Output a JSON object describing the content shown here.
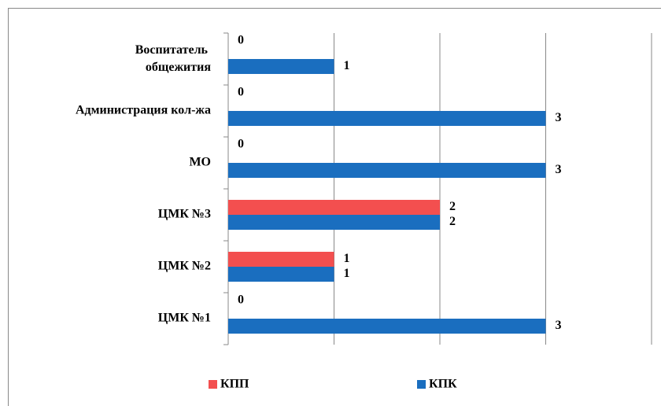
{
  "chart_data": {
    "type": "hbar",
    "categories": [
      "ЦМК  №1",
      "ЦМК  №2",
      "ЦМК  №3",
      "МО",
      "Администрация  кол-жа",
      "Воспитатель\nобщежития"
    ],
    "series": [
      {
        "name": "КПП",
        "color": "#f34f4f",
        "values": [
          0,
          1,
          2,
          0,
          0,
          0
        ]
      },
      {
        "name": "КПК",
        "color": "#1a6ebf",
        "values": [
          3,
          1,
          2,
          3,
          3,
          1
        ]
      }
    ],
    "xlim": [
      0,
      4
    ],
    "xticks": [
      0,
      1,
      2,
      3,
      4
    ],
    "grid": true,
    "legend": "bottom"
  }
}
